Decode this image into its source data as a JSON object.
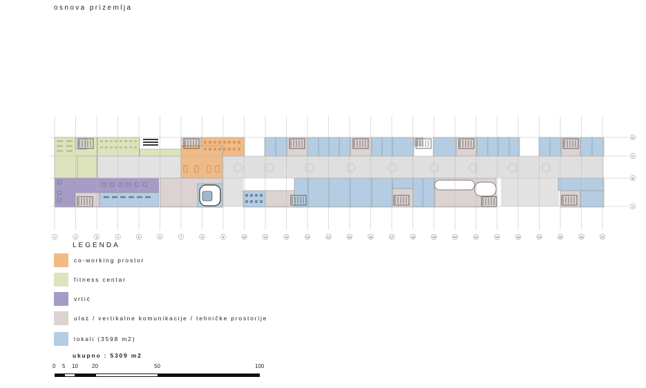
{
  "title": "osnova prizemlja",
  "colors": {
    "coworking": "#f0bb86",
    "fitness": "#dde3bd",
    "vrtic": "#a59bc6",
    "tehnicke": "#dcd2d2",
    "lokali": "#b4cde2",
    "corridor": "#e2e2e2",
    "grid": "#b8b8b8"
  },
  "grid_axes": {
    "columns": [
      "1",
      "2",
      "3",
      "4",
      "5",
      "6",
      "7",
      "8",
      "9",
      "10",
      "11",
      "12",
      "13",
      "14",
      "15",
      "16",
      "17",
      "18",
      "19",
      "20",
      "21",
      "22",
      "23",
      "24",
      "25",
      "26",
      "27"
    ],
    "rows": [
      "D",
      "C",
      "B",
      "A"
    ]
  },
  "legend": {
    "title": "LEGENDA",
    "items": [
      {
        "key": "coworking",
        "label": "co-working prostor"
      },
      {
        "key": "fitness",
        "label": "fitness centar"
      },
      {
        "key": "vrtic",
        "label": "vrtić"
      },
      {
        "key": "tehnicke",
        "label": "ulaz / vertikalne komunikacije / tehničke prostorije"
      },
      {
        "key": "lokali",
        "label": "lokali (3598 m2)"
      }
    ]
  },
  "total": "ukupno : 5309 m2",
  "scale": {
    "labels": [
      "0",
      "5",
      "10",
      "20",
      "50",
      "100"
    ]
  }
}
